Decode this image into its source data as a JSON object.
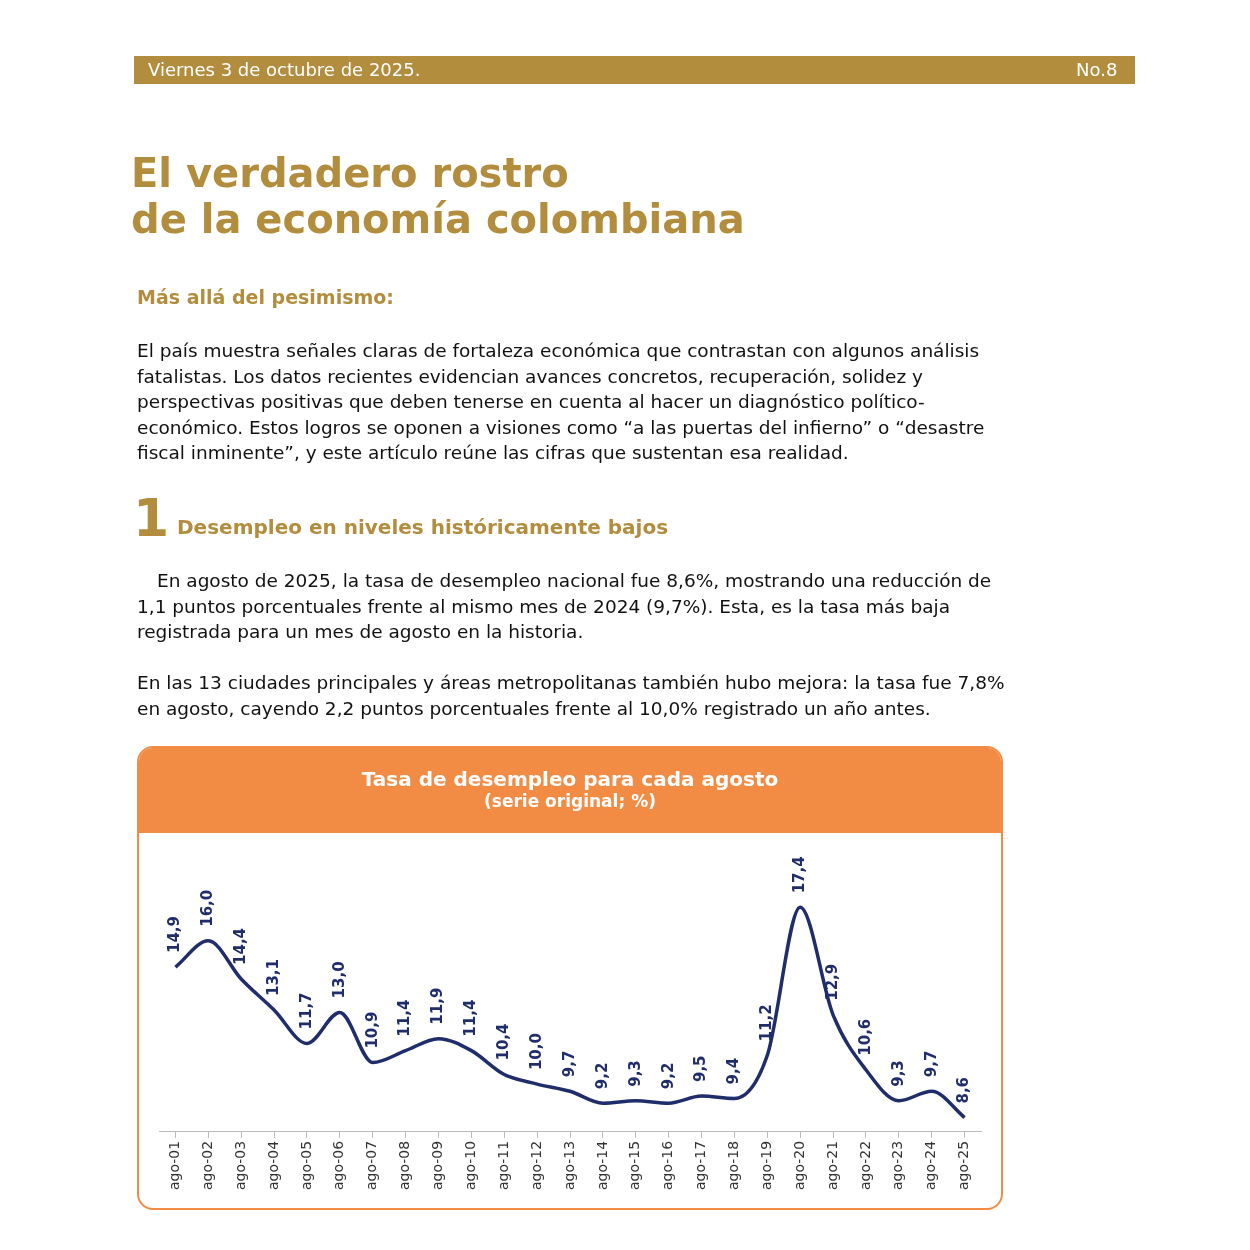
{
  "chart_data": {
    "type": "line",
    "title": "Tasa de desempleo para cada agosto",
    "subtitle": "(serie original; %)",
    "categories": [
      "ago-01",
      "ago-02",
      "ago-03",
      "ago-04",
      "ago-05",
      "ago-06",
      "ago-07",
      "ago-08",
      "ago-09",
      "ago-10",
      "ago-11",
      "ago-12",
      "ago-13",
      "ago-14",
      "ago-15",
      "ago-16",
      "ago-17",
      "ago-18",
      "ago-19",
      "ago-20",
      "ago-21",
      "ago-22",
      "ago-23",
      "ago-24",
      "ago-25"
    ],
    "values": [
      14.9,
      16.0,
      14.4,
      13.1,
      11.7,
      13.0,
      10.9,
      11.4,
      11.9,
      11.4,
      10.4,
      10.0,
      9.7,
      9.2,
      9.3,
      9.2,
      9.5,
      9.4,
      11.2,
      17.4,
      12.9,
      10.6,
      9.3,
      9.7,
      8.6
    ],
    "value_labels": [
      "14,9",
      "16,0",
      "14,4",
      "13,1",
      "11,7",
      "13,0",
      "10,9",
      "11,4",
      "11,9",
      "11,4",
      "10,4",
      "10,0",
      "9,7",
      "9,2",
      "9,3",
      "9,2",
      "9,5",
      "9,4",
      "11,2",
      "17,4",
      "12,9",
      "10,6",
      "9,3",
      "9,7",
      "8,6"
    ],
    "color": "#1f2d6b",
    "marker": "none",
    "line_style": "solid",
    "legend": false,
    "annotations": [
      "Viernes 3 de octubre de 2025.",
      "No.8",
      "El verdadero rostro\nde la economía colombiana",
      "Más allá del pesimismo:",
      "El país muestra señales claras de fortaleza económica que contrastan con algunos análisis fatalistas. Los datos recientes evidencian avances concretos, recuperación, solidez y perspectivas positivas que deben tenerse en cuenta al hacer un diagnóstico político-económico. Estos logros se oponen a visiones como “a las puertas del infierno” o “desastre fiscal inminente”, y este artículo reúne las cifras que sustentan esa realidad.",
      "1",
      "Desempleo en niveles históricamente bajos",
      "En agosto de 2025, la tasa de desempleo nacional fue 8,6%, mostrando una reducción de 1,1 puntos porcentuales frente al mismo mes de 2024 (9,7%). Esta, es la tasa más baja registrada para un mes de agosto en la historia.",
      "En las 13 ciudades principales y áreas metropolitanas también hubo mejora: la tasa fue 7,8% en agosto, cayendo 2,2 puntos porcentuales frente al 10,0% registrado un año antes."
    ]
  }
}
